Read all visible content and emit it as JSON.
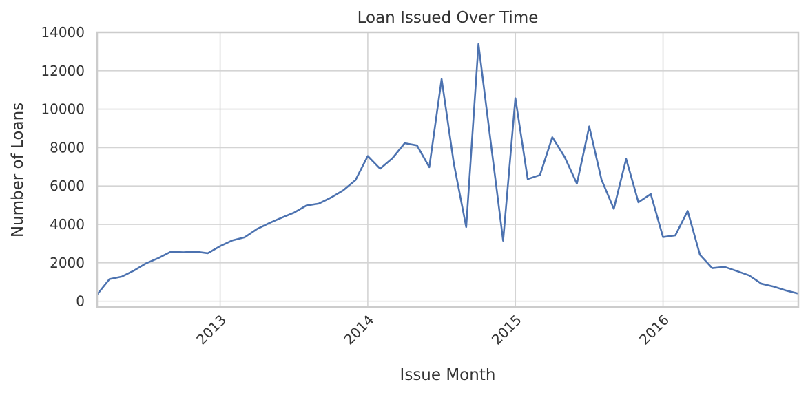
{
  "chart_data": {
    "type": "line",
    "title": "Loan Issued Over Time",
    "xlabel": "Issue Month",
    "ylabel": "Number of Loans",
    "x_range": [
      "2012-03",
      "2016-12"
    ],
    "ylim": [
      -300,
      14000
    ],
    "y_ticks": [
      0,
      2000,
      4000,
      6000,
      8000,
      10000,
      12000,
      14000
    ],
    "y_tick_labels": [
      "0",
      "2000",
      "4000",
      "6000",
      "8000",
      "10000",
      "12000",
      "14000"
    ],
    "x_ticks": [
      "2013-01",
      "2014-01",
      "2015-01",
      "2016-01"
    ],
    "x_tick_labels": [
      "2013",
      "2014",
      "2015",
      "2016"
    ],
    "grid": true,
    "color": "#4c72b0",
    "series": [
      {
        "x": [
          "2012-03",
          "2012-04",
          "2012-05",
          "2012-06",
          "2012-07",
          "2012-08",
          "2012-09",
          "2012-10",
          "2012-11",
          "2012-12",
          "2013-01",
          "2013-02",
          "2013-03",
          "2013-04",
          "2013-05",
          "2013-06",
          "2013-07",
          "2013-08",
          "2013-09",
          "2013-10",
          "2013-11",
          "2013-12",
          "2014-01",
          "2014-02",
          "2014-03",
          "2014-04",
          "2014-05",
          "2014-06",
          "2014-07",
          "2014-08",
          "2014-09",
          "2014-10",
          "2014-11",
          "2014-12",
          "2015-01",
          "2015-02",
          "2015-03",
          "2015-04",
          "2015-05",
          "2015-06",
          "2015-07",
          "2015-08",
          "2015-09",
          "2015-10",
          "2015-11",
          "2015-12",
          "2016-01",
          "2016-02",
          "2016-03",
          "2016-04",
          "2016-05",
          "2016-06",
          "2016-07",
          "2016-08",
          "2016-09",
          "2016-10",
          "2016-11",
          "2016-12"
        ],
        "values": [
          350,
          1150,
          1280,
          1600,
          1980,
          2250,
          2580,
          2550,
          2580,
          2500,
          2870,
          3170,
          3330,
          3760,
          4070,
          4350,
          4610,
          4980,
          5080,
          5390,
          5770,
          6310,
          7560,
          6900,
          7440,
          8230,
          8110,
          6980,
          11570,
          7160,
          3860,
          13390,
          8260,
          3150,
          10570,
          6360,
          6570,
          8540,
          7510,
          6120,
          9100,
          6330,
          4810,
          7410,
          5150,
          5580,
          3340,
          3430,
          4700,
          2420,
          1720,
          1790,
          1570,
          1340,
          910,
          760,
          560,
          400
        ]
      }
    ]
  }
}
